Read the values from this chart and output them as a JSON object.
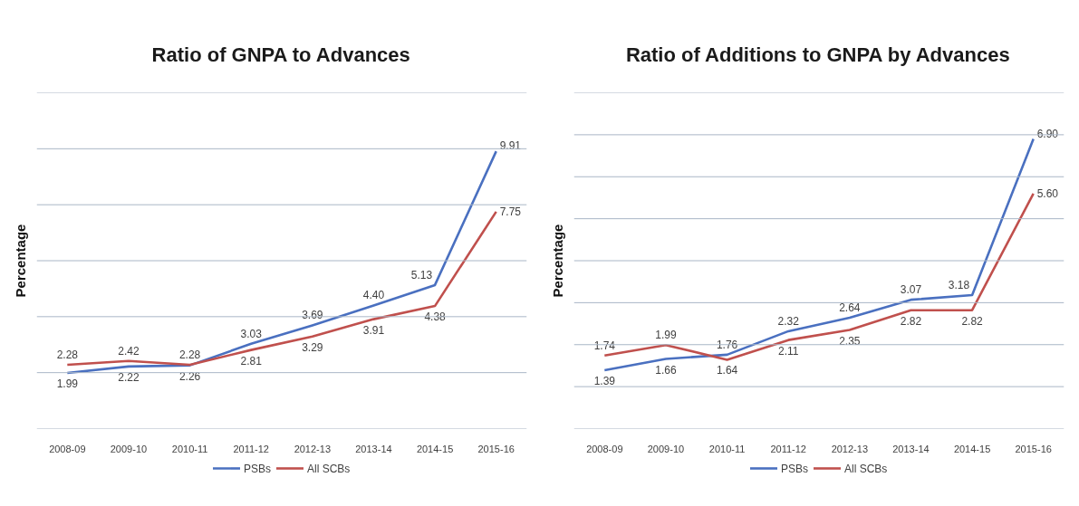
{
  "chart_data": [
    {
      "type": "line",
      "title": "Ratio of GNPA to Advances",
      "ylabel": "Percentage",
      "categories": [
        "2008-09",
        "2009-10",
        "2010-11",
        "2011-12",
        "2012-13",
        "2013-14",
        "2014-15",
        "2015-16"
      ],
      "series": [
        {
          "name": "PSBs",
          "color": "#4a70c0",
          "values": [
            1.99,
            2.22,
            2.26,
            3.03,
            3.69,
            4.4,
            5.13,
            9.91
          ],
          "value_labels": [
            "1.99",
            "2.22",
            "2.26",
            "3.03",
            "3.69",
            "4.40",
            "5.13",
            "9.91"
          ]
        },
        {
          "name": "All SCBs",
          "color": "#c0504d",
          "values": [
            2.28,
            2.42,
            2.28,
            2.81,
            3.29,
            3.91,
            4.38,
            7.75
          ],
          "value_labels": [
            "2.28",
            "2.42",
            "2.28",
            "2.81",
            "3.29",
            "3.91",
            "4.38",
            "7.75"
          ]
        }
      ],
      "ylim": [
        0,
        12
      ],
      "yticks": [
        {
          "value": 0,
          "label": null
        },
        {
          "value": 2,
          "label": null
        },
        {
          "value": 4,
          "label": null
        },
        {
          "value": 6,
          "label": null
        },
        {
          "value": 8,
          "label": null
        },
        {
          "value": 10,
          "label": null
        },
        {
          "value": 12,
          "label": null
        }
      ],
      "tick_labels": "x",
      "grid": "y",
      "legend": "bottom"
    },
    {
      "type": "line",
      "title": "Ratio of Additions to GNPA by Advances",
      "ylabel": "Percentage",
      "categories": [
        "2008-09",
        "2009-10",
        "2010-11",
        "2011-12",
        "2012-13",
        "2013-14",
        "2014-15",
        "2015-16"
      ],
      "series": [
        {
          "name": "PSBs",
          "color": "#4a70c0",
          "values": [
            1.39,
            1.66,
            1.76,
            2.32,
            2.64,
            3.07,
            3.18,
            6.9
          ],
          "value_labels": [
            "1.39",
            "1.66",
            "1.76",
            "2.32",
            "2.64",
            "3.07",
            "3.18",
            "6.90"
          ]
        },
        {
          "name": "All SCBs",
          "color": "#c0504d",
          "values": [
            1.74,
            1.99,
            1.64,
            2.11,
            2.35,
            2.82,
            2.82,
            5.6
          ],
          "value_labels": [
            "1.74",
            "1.99",
            "1.64",
            "2.11",
            "2.35",
            "2.82",
            "2.82",
            "5.60"
          ]
        }
      ],
      "ylim": [
        0,
        8
      ],
      "yticks": [
        {
          "value": 0,
          "label": null
        },
        {
          "value": 1,
          "label": null
        },
        {
          "value": 2,
          "label": null
        },
        {
          "value": 3,
          "label": null
        },
        {
          "value": 4,
          "label": null
        },
        {
          "value": 5,
          "label": null
        },
        {
          "value": 6,
          "label": null
        },
        {
          "value": 7,
          "label": null
        },
        {
          "value": 8,
          "label": null
        }
      ],
      "tick_labels": "x",
      "grid": "y",
      "legend": "bottom"
    }
  ]
}
